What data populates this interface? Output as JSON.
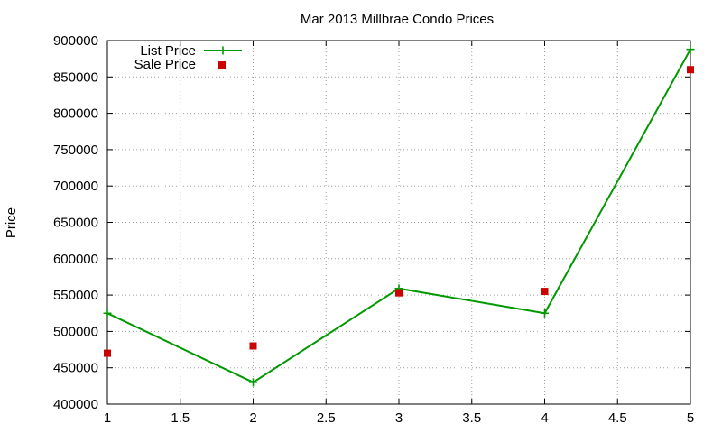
{
  "chart_data": {
    "type": "line",
    "title": "Mar 2013 Millbrae Condo Prices",
    "xlabel": "",
    "ylabel": "Price",
    "xlim": [
      1,
      5
    ],
    "ylim": [
      400000,
      900000
    ],
    "x_ticks": [
      1,
      1.5,
      2,
      2.5,
      3,
      3.5,
      4,
      4.5,
      5
    ],
    "x_tick_labels": [
      "1",
      "1.5",
      "2",
      "2.5",
      "3",
      "3.5",
      "4",
      "4.5",
      "5"
    ],
    "y_ticks": [
      400000,
      450000,
      500000,
      550000,
      600000,
      650000,
      700000,
      750000,
      800000,
      850000,
      900000
    ],
    "y_tick_labels": [
      "400000",
      "450000",
      "500000",
      "550000",
      "600000",
      "650000",
      "700000",
      "750000",
      "800000",
      "850000",
      "900000"
    ],
    "grid": true,
    "legend_position": "top-left",
    "x": [
      1,
      2,
      3,
      4,
      5
    ],
    "series": [
      {
        "name": "List Price",
        "style": "linespoints",
        "marker": "plus",
        "color": "#009900",
        "values": [
          525000,
          430000,
          559000,
          525000,
          888000
        ]
      },
      {
        "name": "Sale Price",
        "style": "points",
        "marker": "square",
        "color": "#cc0000",
        "values": [
          470000,
          480000,
          553000,
          555000,
          860000
        ]
      }
    ]
  }
}
